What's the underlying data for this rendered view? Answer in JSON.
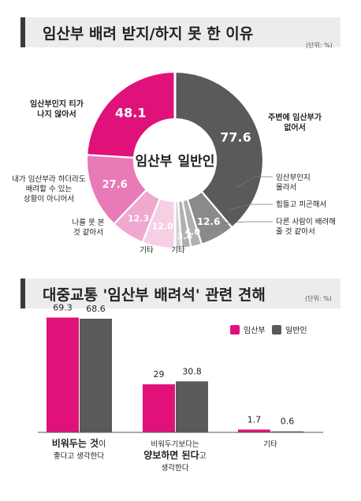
{
  "section1": {
    "title": "임산부 배려 받지/하지 못 한 이유",
    "unit": "(단위: %)"
  },
  "section2": {
    "title": "대중교통 '임산부 배려석' 관련 견해",
    "unit": "(단위: %)"
  },
  "colors": {
    "pregnant": "#e0127a",
    "pregnant_mid": "#e87ab8",
    "pregnant_light": "#f0a8cf",
    "pregnant_lighter": "#f7cfe4",
    "general": "#5a5a5a",
    "general_mid": "#8a8a8a",
    "general_light": "#b0b0b0",
    "general_lighter": "#d2d2d2"
  },
  "chart_data": [
    {
      "type": "pie",
      "title": "임산부 배려 받지/하지 못 한 이유",
      "center_labels": [
        "임산부",
        "일반인"
      ],
      "series": [
        {
          "name": "임산부",
          "slices": [
            {
              "label": "임산부인지 티가 나지 않아서",
              "value": 48.1
            },
            {
              "label": "내가 임산부라 하더라도 배려할 수 있는 상황이 아니어서",
              "value": 27.6
            },
            {
              "label": "나를 못 본 것 같아서",
              "value": 12.3
            },
            {
              "label": "기타",
              "value": 12.0
            }
          ]
        },
        {
          "name": "일반인",
          "slices": [
            {
              "label": "주변에 임산부가 없어서",
              "value": 77.6
            },
            {
              "label": "임산부인지 몰라서",
              "value": 12.6
            },
            {
              "label": "힘들고 피곤해서",
              "value": 4.0
            },
            {
              "label": "다른 사람이 배려해 줄 것 같아서",
              "value": 3.4
            },
            {
              "label": "기타",
              "value": 2.4
            }
          ]
        }
      ]
    },
    {
      "type": "bar",
      "title": "대중교통 '임산부 배려석' 관련 견해",
      "categories": [
        {
          "line1_bold": "비워두는 것",
          "line1_rest": "이",
          "line2": "좋다고 생각한다"
        },
        {
          "line1": "비워두기보다는",
          "line2_bold": "양보하면 된다",
          "line2_rest": "고",
          "line3": "생각한다"
        },
        {
          "line1": "기타"
        }
      ],
      "series": [
        {
          "name": "임산부",
          "values": [
            69.3,
            29,
            1.7
          ]
        },
        {
          "name": "일반인",
          "values": [
            68.6,
            30.8,
            0.6
          ]
        }
      ],
      "value_labels": [
        [
          "69.3",
          "29",
          "1.7"
        ],
        [
          "68.6",
          "30.8",
          "0.6"
        ]
      ],
      "ylim": [
        0,
        80
      ],
      "legend": "top-right"
    }
  ]
}
